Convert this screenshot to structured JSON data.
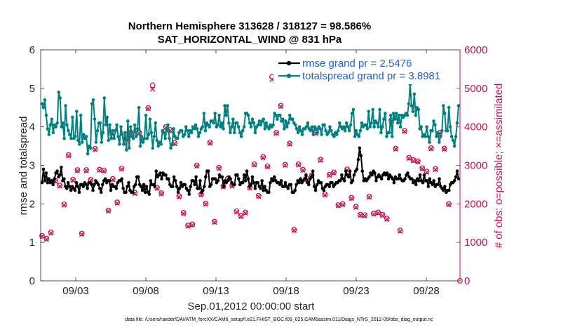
{
  "chart_data": {
    "type": "line",
    "title_line1": "Northern Hemisphere 313628 / 318127 = 98.586%",
    "title_line2": "SAT_HORIZONTAL_WIND @ 831 hPa",
    "xlabel": "Sep.01,2012 00:00:00 start",
    "ylabel_left": "rmse and totalspread",
    "ylabel_right": "# of obs: o=possible; ×=assimilated",
    "footnote": "data file: /Users/raeder/DAI/ATM_forcXX/CAM6_setup/f.e21.FHIST_BGC.f09_025.CAM6assim.011/Diags_NTrS_2012-09/obs_diag_output.nc",
    "xlim": [
      0.5,
      30.4
    ],
    "ylim_left": [
      0,
      6
    ],
    "ylim_right": [
      0,
      6000
    ],
    "x_ticks": [
      3,
      8,
      13,
      18,
      23,
      28
    ],
    "x_tick_labels": [
      "09/03",
      "09/08",
      "09/13",
      "09/18",
      "09/23",
      "09/28"
    ],
    "y_left_ticks": [
      0,
      1,
      2,
      3,
      4,
      5,
      6
    ],
    "y_left_tick_labels": [
      "0",
      "1",
      "2",
      "3",
      "4",
      "5",
      "6"
    ],
    "y_right_ticks": [
      0,
      1000,
      2000,
      3000,
      4000,
      5000,
      6000
    ],
    "y_right_tick_labels": [
      "0",
      "1000",
      "2000",
      "3000",
      "4000",
      "5000",
      "6000"
    ],
    "colors": {
      "rmse": "#000000",
      "spread": "#008080",
      "obs": "#c8104e",
      "legend_text": "#1f5fd8"
    },
    "legend": {
      "placement": "top-right"
    },
    "series": [
      {
        "name": "rmse grand pr = 2.5476",
        "axis": "left",
        "color": "#000000",
        "values": [
          2.55,
          2.9,
          2.6,
          2.8,
          2.55,
          2.65,
          2.55,
          2.6,
          2.5,
          2.65,
          2.8,
          2.85,
          2.7,
          2.75,
          2.95,
          2.6,
          2.65,
          2.45,
          2.4,
          2.55,
          2.45,
          2.35,
          2.45,
          2.4,
          2.35,
          2.55,
          2.45,
          2.3,
          2.5,
          2.5,
          2.45,
          2.55,
          2.5,
          2.4,
          2.55,
          2.55,
          2.5,
          2.35,
          2.5,
          2.6,
          2.55,
          2.5,
          2.4,
          2.3,
          2.5,
          2.6,
          2.65,
          2.55,
          2.6,
          2.6,
          2.35,
          2.5,
          2.45,
          2.45,
          2.4,
          2.55,
          2.6,
          2.6,
          2.65,
          2.4,
          2.3,
          2.3,
          2.45,
          2.55,
          2.35,
          2.3,
          2.3,
          2.45,
          2.5,
          2.7,
          2.7,
          2.5,
          2.45,
          2.35,
          2.5,
          2.3,
          2.45,
          2.3,
          2.25,
          2.6,
          2.5,
          2.5,
          2.45,
          2.85,
          2.7,
          2.75,
          2.8,
          2.65,
          2.8,
          2.75,
          2.75,
          2.65,
          2.65,
          2.5,
          2.45,
          2.45,
          2.7,
          2.6,
          2.45,
          2.3,
          2.4,
          2.55,
          2.45,
          2.5,
          2.5,
          2.4,
          2.35,
          2.25,
          2.45,
          2.6,
          2.6,
          2.5,
          2.7,
          2.4,
          2.4,
          2.6,
          2.3,
          2.35,
          2.45,
          2.7,
          2.85,
          2.85,
          2.45,
          2.5,
          2.65,
          2.65,
          2.65,
          2.55,
          2.6,
          2.75,
          2.7,
          2.7,
          2.45,
          2.6,
          2.55,
          2.6,
          2.7,
          2.65,
          2.55,
          2.5,
          2.5,
          2.75,
          2.75,
          2.65,
          2.5,
          2.55,
          2.55,
          2.75,
          2.6,
          2.85,
          2.65,
          2.45,
          2.5,
          2.7,
          2.55,
          2.4,
          2.55,
          2.55,
          2.45,
          2.4,
          2.6,
          2.35,
          2.45,
          2.35,
          2.3,
          2.3,
          2.55,
          2.65,
          2.6,
          2.7,
          2.6,
          2.55,
          2.55,
          2.5,
          2.6,
          2.45,
          2.45,
          2.55,
          2.45,
          2.4,
          2.5,
          2.5,
          2.3,
          2.3,
          2.35,
          2.5,
          2.6,
          2.55,
          2.65,
          2.55,
          2.6,
          2.65,
          2.75,
          2.55,
          2.5,
          2.65,
          2.7,
          2.85,
          2.45,
          2.35,
          2.5,
          2.6,
          2.55,
          2.55,
          2.4,
          2.35,
          2.45,
          2.5,
          2.5,
          2.45,
          2.55,
          2.55,
          2.45,
          2.5,
          2.55,
          2.55,
          2.6,
          2.6,
          2.75,
          2.65,
          2.6,
          2.85,
          2.75,
          2.7,
          2.85,
          2.55,
          2.6,
          2.75,
          2.85,
          2.9,
          3.15,
          3.45,
          3.25,
          2.85,
          2.6,
          2.65,
          2.6,
          2.65,
          2.7,
          2.8,
          2.75,
          2.85,
          2.8,
          2.6,
          2.7,
          2.75,
          2.7,
          2.65,
          2.75,
          2.8,
          2.75,
          2.8,
          2.65,
          2.75,
          2.7,
          2.65,
          2.55,
          2.7,
          2.65,
          2.65,
          2.75,
          2.65,
          2.6,
          2.6,
          2.65,
          2.75,
          2.8,
          2.7,
          2.65,
          2.65,
          2.55,
          2.6,
          2.5,
          2.65,
          2.6,
          2.75,
          2.6,
          2.55,
          2.75,
          2.6,
          2.6,
          2.45,
          2.65,
          2.55,
          2.5,
          2.6,
          2.45,
          2.5,
          2.5,
          2.65,
          2.45,
          2.4,
          2.35,
          2.45,
          2.3,
          2.35,
          2.35,
          2.5,
          2.55,
          2.55,
          2.6,
          2.7,
          2.85,
          2.65
        ]
      },
      {
        "name": "totalspread grand pr = 3.8981",
        "axis": "left",
        "color": "#008080",
        "values": [
          4.6,
          4.5,
          4.7,
          4.3,
          3.95,
          3.8,
          4.05,
          4.2,
          3.85,
          4.05,
          4.0,
          4.1,
          4.9,
          4.75,
          4.0,
          4.1,
          3.7,
          4.55,
          4.05,
          3.9,
          3.8,
          3.7,
          4.25,
          3.7,
          3.75,
          4.4,
          3.65,
          3.55,
          4.3,
          3.6,
          3.8,
          3.7,
          3.75,
          3.3,
          3.5,
          3.45,
          4.6,
          4.7,
          4.2,
          3.6,
          3.9,
          4.1,
          4.1,
          3.6,
          3.85,
          4.75,
          4.05,
          4.25,
          3.65,
          4.05,
          3.7,
          3.9,
          3.7,
          3.9,
          4.05,
          3.75,
          3.55,
          4.0,
          3.8,
          3.55,
          3.85,
          3.4,
          4.15,
          3.45,
          4.0,
          3.75,
          3.7,
          4.05,
          3.75,
          3.95,
          4.5,
          3.5,
          3.75,
          3.6,
          3.7,
          4.3,
          3.7,
          3.8,
          4.2,
          3.85,
          3.45,
          3.75,
          4.1,
          3.65,
          3.5,
          3.6,
          3.55,
          3.9,
          3.85,
          3.7,
          3.9,
          4.05,
          3.7,
          3.45,
          3.55,
          3.95,
          3.75,
          3.7,
          3.7,
          3.85,
          3.9,
          3.9,
          3.75,
          3.8,
          4.0,
          3.9,
          3.75,
          3.9,
          3.85,
          4.0,
          3.95,
          4.05,
          3.95,
          3.75,
          3.85,
          3.95,
          4.0,
          4.35,
          3.9,
          4.1,
          4.05,
          4.0,
          4.15,
          4.15,
          4.1,
          4.35,
          4.0,
          4.05,
          4.3,
          4.0,
          4.1,
          3.95,
          4.55,
          4.3,
          4.55,
          4.1,
          3.85,
          4.0,
          4.2,
          3.85,
          4.1,
          4.1,
          4.0,
          3.85,
          3.75,
          3.9,
          4.0,
          4.35,
          4.35,
          4.3,
          4.1,
          4.0,
          4.2,
          4.1,
          3.85,
          4.0,
          4.05,
          4.15,
          4.05,
          4.15,
          4.2,
          3.95,
          4.1,
          4.0,
          3.95,
          4.05,
          4.0,
          4.05,
          4.35,
          4.3,
          4.2,
          4.3,
          4.3,
          4.15,
          4.2,
          3.95,
          4.15,
          4.0,
          4.1,
          4.3,
          4.2,
          4.2,
          4.1,
          4.05,
          3.95,
          3.85,
          4.0,
          3.9,
          3.8,
          3.95,
          3.95,
          4.0,
          4.1,
          3.95,
          3.9,
          4.0,
          3.8,
          4.0,
          3.95,
          3.85,
          4.0,
          3.95,
          3.8,
          4.05,
          4.05,
          3.9,
          3.8,
          3.85,
          4.0,
          3.9,
          3.8,
          3.75,
          3.85,
          3.8,
          3.9,
          4.1,
          4.0,
          3.95,
          4.0,
          3.9,
          4.1,
          4.0,
          3.9,
          4.05,
          4.35,
          4.45,
          3.75,
          3.9,
          3.8,
          3.75,
          3.9,
          4.1,
          4.0,
          4.05,
          4.05,
          3.95,
          4.4,
          4.0,
          4.1,
          4.45,
          4.0,
          4.15,
          4.1,
          4.0,
          4.45,
          3.85,
          4.0,
          4.2,
          4.35,
          3.75,
          3.85,
          3.85,
          4.3,
          3.75,
          4.35,
          4.2,
          4.35,
          4.1,
          4.3,
          4.0,
          4.3,
          4.25,
          4.3,
          4.35,
          4.3,
          4.6,
          5.1,
          4.55,
          4.4,
          4.85,
          4.3,
          4.5,
          4.45,
          3.95,
          4.0,
          3.75,
          3.8,
          3.75,
          4.0,
          3.75,
          3.6,
          3.9,
          3.9,
          4.15,
          4.05,
          3.75,
          3.85,
          3.6,
          3.75,
          3.9,
          4.55,
          4.35,
          3.9,
          3.9,
          4.5,
          4.0,
          3.75,
          3.65,
          3.5,
          3.75,
          4.1,
          4.55
        ]
      },
      {
        "name": "# of obs possible",
        "axis": "right",
        "marker": "o",
        "color": "#c8104e",
        "values": [
          1170,
          1100,
          1260,
          2600,
          2480,
          1990,
          3270,
          2630,
          2880,
          1230,
          2880,
          2630,
          3430,
          2890,
          2870,
          1830,
          2650,
          2040,
          2920,
          3710,
          3860,
          2290,
          3850,
          2430,
          4490,
          5080,
          2420,
          2280,
          4000,
          3920,
          3580,
          2200,
          1770,
          1440,
          1470,
          3000,
          2250,
          2010,
          3600,
          1540,
          2940,
          2460,
          2660,
          2480,
          1810,
          1690,
          1780,
          2430,
          3030,
          2210,
          3220,
          2980,
          5300,
          3850,
          4550,
          3020,
          3570,
          1330,
          3030,
          2890,
          2650,
          2740,
          3850,
          3150,
          2250,
          2760,
          2820,
          1970,
          2000,
          2900,
          2160,
          1930,
          1720,
          1710,
          2190,
          1750,
          1780,
          1720,
          1620,
          4170,
          3440,
          1310,
          3900,
          3200,
          3140,
          3110,
          2930,
          2840,
          3450,
          2910,
          3850,
          3440,
          2000
        ]
      },
      {
        "name": "# of obs assimilated",
        "axis": "right",
        "marker": "x",
        "color": "#c8104e",
        "values": [
          1160,
          1080,
          1240,
          2580,
          2460,
          1970,
          3250,
          2610,
          2860,
          1210,
          2860,
          2610,
          3410,
          2870,
          2850,
          1810,
          2630,
          2020,
          2900,
          3690,
          3840,
          2270,
          3830,
          2410,
          4470,
          4980,
          2400,
          2260,
          3980,
          3900,
          3560,
          2180,
          1750,
          1420,
          1450,
          2980,
          2230,
          1990,
          3580,
          1520,
          2920,
          2440,
          2640,
          2460,
          1790,
          1670,
          1760,
          2410,
          3010,
          2190,
          3200,
          2960,
          5230,
          3830,
          4530,
          3000,
          3550,
          1310,
          3010,
          2870,
          2630,
          2720,
          3830,
          3130,
          2230,
          2740,
          2800,
          1950,
          1980,
          2880,
          2140,
          1910,
          1700,
          1690,
          2170,
          1730,
          1760,
          1700,
          1600,
          4150,
          3420,
          1290,
          3880,
          3180,
          3120,
          3090,
          2910,
          2820,
          3430,
          2890,
          3830,
          3420,
          1980
        ]
      }
    ]
  }
}
